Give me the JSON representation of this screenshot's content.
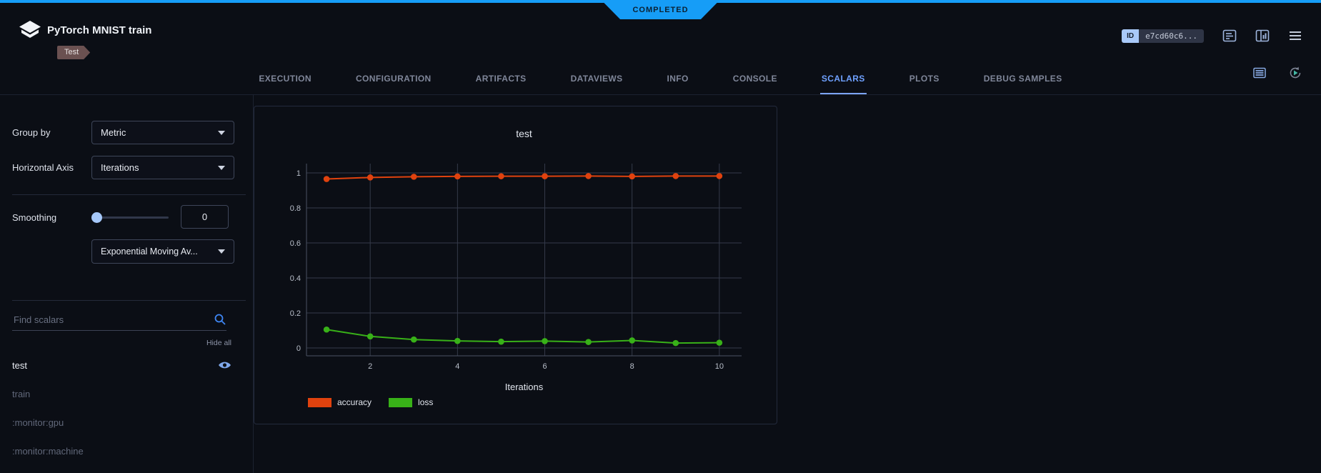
{
  "status_ribbon": {
    "label": "COMPLETED",
    "color": "#169df7"
  },
  "header": {
    "title": "PyTorch MNIST train",
    "tag": "Test",
    "id_label": "ID",
    "id_value": "e7cd60c6...",
    "icons": [
      "details-panel-icon",
      "side-panel-icon",
      "menu-icon"
    ]
  },
  "tabs": {
    "items": [
      {
        "label": "EXECUTION"
      },
      {
        "label": "CONFIGURATION"
      },
      {
        "label": "ARTIFACTS"
      },
      {
        "label": "DATAVIEWS"
      },
      {
        "label": "INFO"
      },
      {
        "label": "CONSOLE"
      },
      {
        "label": "SCALARS"
      },
      {
        "label": "PLOTS"
      },
      {
        "label": "DEBUG SAMPLES"
      }
    ],
    "active_tab": "SCALARS"
  },
  "sidebar": {
    "group_by": {
      "label": "Group by",
      "value": "Metric"
    },
    "horizontal_axis": {
      "label": "Horizontal Axis",
      "value": "Iterations"
    },
    "smoothing": {
      "label": "Smoothing",
      "value": "0",
      "method": "Exponential Moving Av..."
    },
    "search": {
      "placeholder": "Find scalars"
    },
    "hide_all_label": "Hide all",
    "metrics": [
      {
        "label": "test",
        "visible": true
      },
      {
        "label": "train",
        "visible": false
      },
      {
        "label": ":monitor:gpu",
        "visible": false
      },
      {
        "label": ":monitor:machine",
        "visible": false
      }
    ]
  },
  "chart_data": {
    "type": "line",
    "title": "test",
    "xlabel": "Iterations",
    "ylabel": "",
    "x": [
      1,
      2,
      3,
      4,
      5,
      6,
      7,
      8,
      9,
      10
    ],
    "series": [
      {
        "name": "accuracy",
        "color": "#e0420e",
        "values": [
          0.965,
          0.974,
          0.978,
          0.98,
          0.981,
          0.981,
          0.982,
          0.98,
          0.982,
          0.982
        ]
      },
      {
        "name": "loss",
        "color": "#38b118",
        "values": [
          0.105,
          0.066,
          0.048,
          0.04,
          0.036,
          0.039,
          0.034,
          0.043,
          0.028,
          0.03
        ]
      }
    ],
    "xticks": [
      2,
      4,
      6,
      8,
      10
    ],
    "yticks": [
      0,
      0.2,
      0.4,
      0.6,
      0.8,
      1
    ],
    "xlim": [
      0.54,
      10.51
    ],
    "ylim": [
      -0.045,
      1.053
    ],
    "grid": true,
    "legend_position": "bottom-left"
  }
}
